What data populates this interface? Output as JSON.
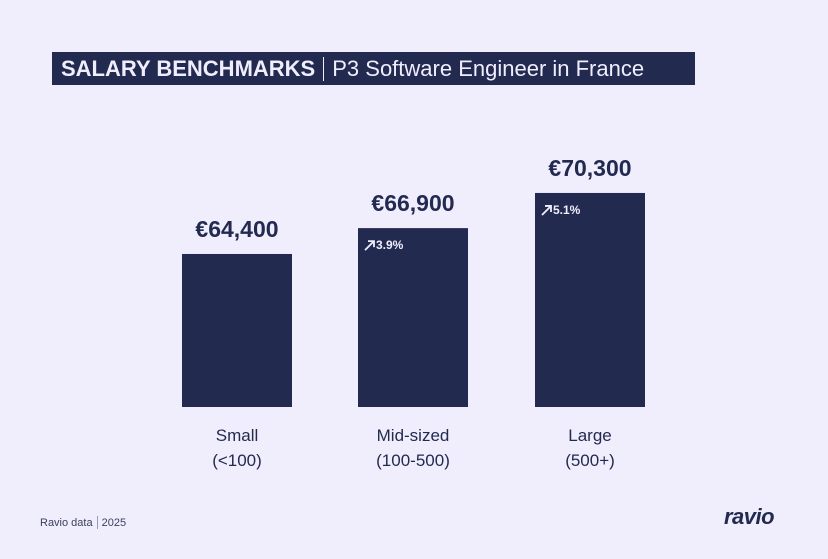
{
  "header": {
    "title_bold": "SALARY BENCHMARKS",
    "title_rest": "P3 Software Engineer in France"
  },
  "chart_data": {
    "type": "bar",
    "categories": [
      [
        "Small",
        "(<100)"
      ],
      [
        "Mid-sized",
        "(100-500)"
      ],
      [
        "Large",
        "(500+)"
      ]
    ],
    "values": [
      64400,
      66900,
      70300
    ],
    "value_labels": [
      "€64,400",
      "€66,900",
      "€70,300"
    ],
    "change_labels": [
      "",
      "3.9%",
      "5.1%"
    ],
    "title": "SALARY BENCHMARKS | P3 Software Engineer in France",
    "xlabel": "",
    "ylabel": "",
    "grid": false,
    "bar_color": "#232a50",
    "background": "#f0eefc"
  },
  "footer": {
    "source": "Ravio data",
    "year": "2025",
    "logo": "ravio"
  }
}
